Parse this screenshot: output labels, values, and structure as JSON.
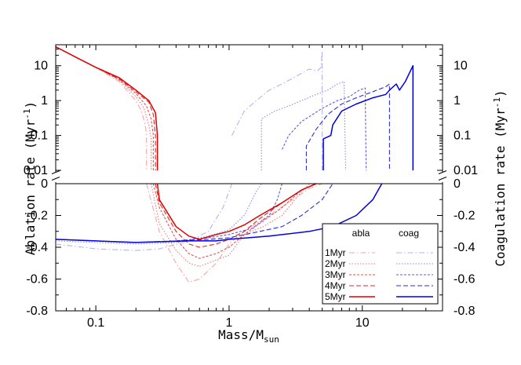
{
  "chart_data": {
    "type": "line",
    "title": "",
    "xlabel_main": "Mass/M",
    "xlabel_sub": "sun",
    "ylabel_left": "Ablation rate (Myr",
    "ylabel_right": "Coagulation rate (Myr",
    "ylabel_exp": "-1",
    "ylabel_close": ")",
    "x_scale": "log",
    "xlim": [
      0.05,
      40
    ],
    "x_ticks": [
      {
        "v": 0.1,
        "label": "0.1"
      },
      {
        "v": 1,
        "label": "1"
      },
      {
        "v": 10,
        "label": "10"
      }
    ],
    "upper_panel": {
      "y_scale": "log",
      "ylim": [
        0.01,
        40
      ],
      "left_ticks": [
        {
          "v": 10,
          "label": "10"
        },
        {
          "v": 1,
          "label": "1"
        },
        {
          "v": 0.1,
          "label": "0.1"
        },
        {
          "v": 0.01,
          "label": "0.01"
        }
      ],
      "right_ticks": [
        {
          "v": 10,
          "label": "10"
        },
        {
          "v": 1,
          "label": "1"
        },
        {
          "v": 0.1,
          "label": "0.1"
        },
        {
          "v": 0.01,
          "label": "0.01"
        }
      ]
    },
    "lower_panel": {
      "y_scale": "linear",
      "ylim": [
        -0.8,
        0
      ],
      "ticks": [
        {
          "v": 0,
          "label": "0"
        },
        {
          "v": -0.2,
          "label": "-0.2"
        },
        {
          "v": -0.4,
          "label": "-0.4"
        },
        {
          "v": -0.6,
          "label": "-0.6"
        },
        {
          "v": -0.8,
          "label": "-0.8"
        }
      ]
    },
    "legend": {
      "position": "bottom-right",
      "col_headers": [
        "abla",
        "coag"
      ]
    },
    "series": [
      {
        "name": "1Myr",
        "color_abla": "#f5a6a6",
        "color_coag": "#b3b3f2",
        "dash": "7,3,1.5,3",
        "abla_upper": [
          [
            0.05,
            35
          ],
          [
            0.07,
            18
          ],
          [
            0.1,
            9
          ],
          [
            0.15,
            3.5
          ],
          [
            0.2,
            1.0
          ],
          [
            0.22,
            0.5
          ],
          [
            0.235,
            0.2
          ],
          [
            0.24,
            0.1
          ],
          [
            0.24,
            0.01
          ]
        ],
        "abla_lower": [
          [
            0.24,
            0
          ],
          [
            0.3,
            -0.3
          ],
          [
            0.4,
            -0.5
          ],
          [
            0.5,
            -0.62
          ],
          [
            0.6,
            -0.6
          ],
          [
            0.8,
            -0.5
          ],
          [
            1.0,
            -0.38
          ],
          [
            1.3,
            -0.3
          ],
          [
            1.6,
            -0.25
          ],
          [
            2.0,
            -0.2
          ],
          [
            3.0,
            -0.1
          ],
          [
            4.0,
            -0.03
          ],
          [
            5.0,
            0
          ]
        ],
        "coag_upper": [
          [
            1.05,
            0.1
          ],
          [
            1.3,
            0.5
          ],
          [
            1.6,
            1.0
          ],
          [
            2.0,
            2.0
          ],
          [
            2.5,
            3.0
          ],
          [
            3.2,
            5.0
          ],
          [
            4.0,
            8.0
          ],
          [
            4.6,
            7.0
          ],
          [
            4.9,
            9.0
          ],
          [
            5.0,
            27
          ],
          [
            5.0,
            0.01
          ]
        ],
        "coag_lower": [
          [
            0.05,
            -0.38
          ],
          [
            0.08,
            -0.4
          ],
          [
            0.1,
            -0.41
          ],
          [
            0.2,
            -0.42
          ],
          [
            0.3,
            -0.41
          ],
          [
            0.5,
            -0.36
          ],
          [
            0.7,
            -0.3
          ],
          [
            0.9,
            -0.15
          ],
          [
            1.0,
            -0.05
          ],
          [
            1.05,
            0
          ]
        ]
      },
      {
        "name": "2Myr",
        "color_abla": "#ef7777",
        "color_coag": "#8a8ae8",
        "dash": "1.5,2",
        "abla_upper": [
          [
            0.05,
            35
          ],
          [
            0.07,
            18
          ],
          [
            0.1,
            9
          ],
          [
            0.15,
            3.8
          ],
          [
            0.2,
            1.3
          ],
          [
            0.23,
            0.6
          ],
          [
            0.25,
            0.2
          ],
          [
            0.26,
            0.08
          ],
          [
            0.26,
            0.01
          ]
        ],
        "abla_lower": [
          [
            0.26,
            0
          ],
          [
            0.3,
            -0.25
          ],
          [
            0.4,
            -0.42
          ],
          [
            0.5,
            -0.5
          ],
          [
            0.6,
            -0.52
          ],
          [
            0.8,
            -0.48
          ],
          [
            1.0,
            -0.45
          ],
          [
            1.3,
            -0.32
          ],
          [
            1.8,
            -0.27
          ],
          [
            2.5,
            -0.2
          ],
          [
            3.5,
            -0.05
          ],
          [
            4.0,
            0
          ]
        ],
        "coag_upper": [
          [
            1.75,
            0.01
          ],
          [
            1.75,
            0.3
          ],
          [
            2.2,
            0.5
          ],
          [
            2.8,
            0.7
          ],
          [
            3.5,
            1.0
          ],
          [
            4.5,
            1.5
          ],
          [
            5.5,
            2.0
          ],
          [
            6.5,
            3.0
          ],
          [
            7.3,
            3.5
          ],
          [
            7.5,
            0.01
          ]
        ],
        "coag_lower": [
          [
            0.05,
            -0.36
          ],
          [
            0.1,
            -0.37
          ],
          [
            0.2,
            -0.38
          ],
          [
            0.4,
            -0.37
          ],
          [
            0.7,
            -0.33
          ],
          [
            1.0,
            -0.29
          ],
          [
            1.3,
            -0.2
          ],
          [
            1.6,
            -0.05
          ],
          [
            1.75,
            0
          ]
        ]
      },
      {
        "name": "3Myr",
        "color_abla": "#e84d4d",
        "color_coag": "#5c5ce0",
        "dash": "3,2",
        "abla_upper": [
          [
            0.05,
            35
          ],
          [
            0.07,
            18
          ],
          [
            0.1,
            9
          ],
          [
            0.15,
            4
          ],
          [
            0.2,
            1.6
          ],
          [
            0.24,
            0.7
          ],
          [
            0.26,
            0.3
          ],
          [
            0.27,
            0.1
          ],
          [
            0.27,
            0.01
          ]
        ],
        "abla_lower": [
          [
            0.27,
            0
          ],
          [
            0.3,
            -0.15
          ],
          [
            0.4,
            -0.35
          ],
          [
            0.5,
            -0.44
          ],
          [
            0.6,
            -0.47
          ],
          [
            0.8,
            -0.44
          ],
          [
            1.0,
            -0.4
          ],
          [
            1.3,
            -0.32
          ],
          [
            1.7,
            -0.25
          ],
          [
            2.5,
            -0.15
          ],
          [
            3.5,
            -0.04
          ],
          [
            4.5,
            0
          ]
        ],
        "coag_upper": [
          [
            2.5,
            0.04
          ],
          [
            2.8,
            0.1
          ],
          [
            3.5,
            0.25
          ],
          [
            5,
            0.6
          ],
          [
            6.5,
            1.0
          ],
          [
            8,
            1.3
          ],
          [
            9.5,
            2.0
          ],
          [
            10.5,
            2.3
          ],
          [
            10.7,
            0.01
          ]
        ],
        "coag_lower": [
          [
            0.05,
            -0.35
          ],
          [
            0.1,
            -0.36
          ],
          [
            0.2,
            -0.37
          ],
          [
            0.4,
            -0.36
          ],
          [
            0.7,
            -0.34
          ],
          [
            1.0,
            -0.32
          ],
          [
            1.5,
            -0.28
          ],
          [
            2.0,
            -0.2
          ],
          [
            2.3,
            -0.1
          ],
          [
            2.5,
            0
          ]
        ]
      },
      {
        "name": "4Myr",
        "color_abla": "#df2727",
        "color_coag": "#2e2ed8",
        "dash": "6,3",
        "abla_upper": [
          [
            0.05,
            35
          ],
          [
            0.07,
            18
          ],
          [
            0.1,
            9
          ],
          [
            0.15,
            4.2
          ],
          [
            0.2,
            1.8
          ],
          [
            0.25,
            0.9
          ],
          [
            0.27,
            0.4
          ],
          [
            0.28,
            0.1
          ],
          [
            0.28,
            0.01
          ]
        ],
        "abla_lower": [
          [
            0.28,
            0
          ],
          [
            0.3,
            -0.12
          ],
          [
            0.4,
            -0.3
          ],
          [
            0.5,
            -0.38
          ],
          [
            0.6,
            -0.4
          ],
          [
            0.8,
            -0.38
          ],
          [
            1.0,
            -0.35
          ],
          [
            1.3,
            -0.3
          ],
          [
            1.7,
            -0.22
          ],
          [
            2.5,
            -0.12
          ],
          [
            3.5,
            -0.04
          ],
          [
            4.5,
            0
          ]
        ],
        "coag_upper": [
          [
            3.8,
            0.01
          ],
          [
            3.8,
            0.05
          ],
          [
            4.5,
            0.15
          ],
          [
            5.5,
            0.4
          ],
          [
            7,
            0.8
          ],
          [
            9,
            1.2
          ],
          [
            12,
            1.8
          ],
          [
            15,
            2.5
          ],
          [
            16,
            3.0
          ],
          [
            16,
            0.01
          ]
        ],
        "coag_lower": [
          [
            0.05,
            -0.35
          ],
          [
            0.1,
            -0.36
          ],
          [
            0.2,
            -0.37
          ],
          [
            0.4,
            -0.36
          ],
          [
            0.7,
            -0.35
          ],
          [
            1.0,
            -0.34
          ],
          [
            1.5,
            -0.31
          ],
          [
            2.5,
            -0.27
          ],
          [
            3.5,
            -0.2
          ],
          [
            5.0,
            -0.1
          ],
          [
            6.0,
            0
          ]
        ]
      },
      {
        "name": "5Myr",
        "color_abla": "#e00000",
        "color_coag": "#0000e0",
        "dash": "",
        "abla_upper": [
          [
            0.05,
            35
          ],
          [
            0.07,
            18
          ],
          [
            0.1,
            9
          ],
          [
            0.15,
            4.5
          ],
          [
            0.2,
            2.0
          ],
          [
            0.25,
            1.0
          ],
          [
            0.28,
            0.45
          ],
          [
            0.29,
            0.1
          ],
          [
            0.29,
            0.01
          ]
        ],
        "abla_lower": [
          [
            0.29,
            0
          ],
          [
            0.3,
            -0.1
          ],
          [
            0.4,
            -0.27
          ],
          [
            0.5,
            -0.33
          ],
          [
            0.6,
            -0.35
          ],
          [
            0.8,
            -0.32
          ],
          [
            1.0,
            -0.3
          ],
          [
            1.3,
            -0.26
          ],
          [
            1.7,
            -0.2
          ],
          [
            2.5,
            -0.12
          ],
          [
            3.5,
            -0.04
          ],
          [
            4.5,
            0
          ]
        ],
        "coag_upper": [
          [
            5.1,
            0.01
          ],
          [
            5.1,
            0.08
          ],
          [
            5.8,
            0.1
          ],
          [
            6,
            0.2
          ],
          [
            7,
            0.5
          ],
          [
            9,
            0.8
          ],
          [
            12,
            1.2
          ],
          [
            15,
            1.5
          ],
          [
            16,
            2.0
          ],
          [
            18,
            3.0
          ],
          [
            19,
            2.0
          ],
          [
            21,
            3.5
          ],
          [
            24,
            10
          ],
          [
            24,
            0.01
          ]
        ],
        "coag_lower": [
          [
            0.05,
            -0.35
          ],
          [
            0.1,
            -0.36
          ],
          [
            0.2,
            -0.37
          ],
          [
            0.5,
            -0.36
          ],
          [
            0.8,
            -0.36
          ],
          [
            1.0,
            -0.35
          ],
          [
            2.0,
            -0.33
          ],
          [
            4.0,
            -0.3
          ],
          [
            6.0,
            -0.27
          ],
          [
            9.0,
            -0.2
          ],
          [
            12.0,
            -0.1
          ],
          [
            14.0,
            0
          ]
        ]
      }
    ]
  }
}
